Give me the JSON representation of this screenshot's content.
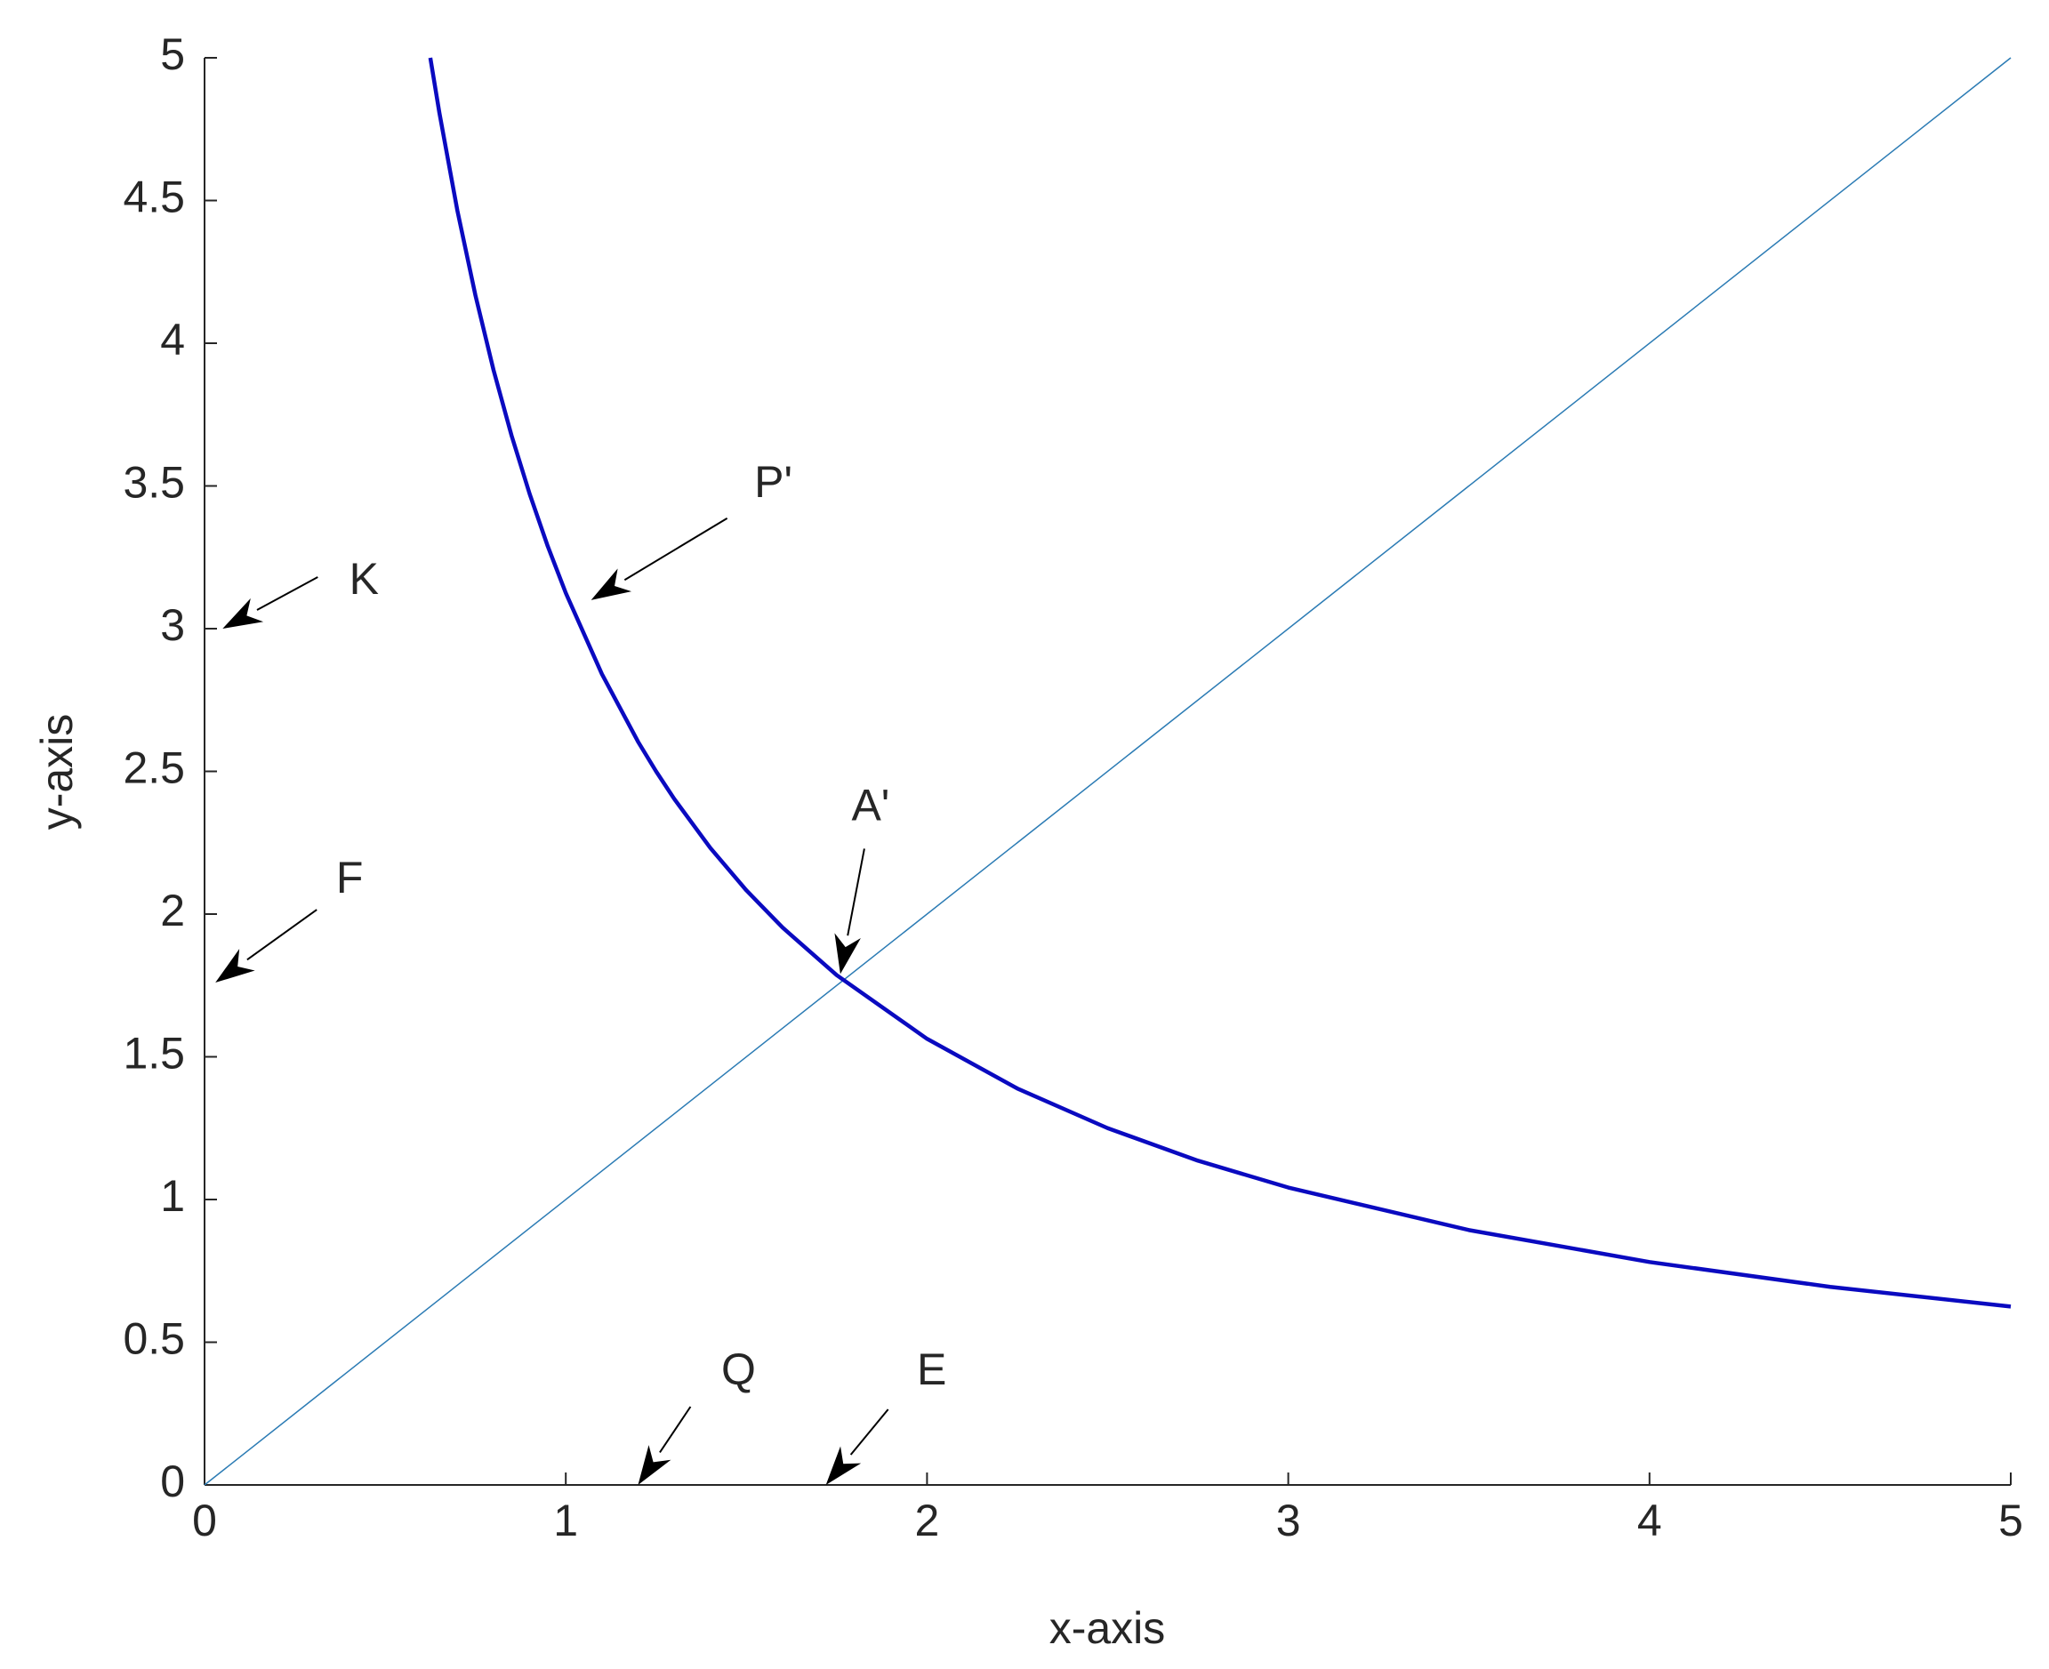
{
  "chart_data": {
    "type": "line",
    "x_label": "x-axis",
    "y_label": "y-axis",
    "xlim": [
      0,
      5
    ],
    "ylim": [
      0,
      5
    ],
    "xticks": [
      0,
      1,
      2,
      3,
      4,
      5
    ],
    "yticks": [
      0,
      0.5,
      1,
      1.5,
      2,
      2.5,
      3,
      3.5,
      4,
      4.5,
      5
    ],
    "grid": false,
    "series": [
      {
        "color": "#2b7bb4",
        "width": 1.5,
        "x": [
          0,
          5
        ],
        "values": [
          0,
          5
        ]
      },
      {
        "color": "#0a0ac0",
        "width": 4.5,
        "x": [
          0.625,
          0.65,
          0.7,
          0.75,
          0.8,
          0.85,
          0.9,
          0.95,
          1,
          1.1,
          1.2,
          1.25,
          1.3,
          1.4,
          1.5,
          1.6,
          1.75,
          2,
          2.25,
          2.5,
          2.75,
          3,
          3.5,
          4,
          4.5,
          5
        ],
        "values": [
          5,
          4.808,
          4.464,
          4.167,
          3.906,
          3.676,
          3.472,
          3.289,
          3.125,
          2.841,
          2.604,
          2.5,
          2.404,
          2.232,
          2.083,
          1.953,
          1.786,
          1.563,
          1.389,
          1.25,
          1.136,
          1.042,
          0.893,
          0.781,
          0.694,
          0.625
        ]
      }
    ],
    "annotations": [
      {
        "text": "P'",
        "x": 1.07,
        "y": 3.1
      },
      {
        "text": "K",
        "x": 0.05,
        "y": 3.0
      },
      {
        "text": "F",
        "x": 0.03,
        "y": 1.76
      },
      {
        "text": "A'",
        "x": 1.76,
        "y": 1.79
      },
      {
        "text": "Q",
        "x": 1.2,
        "y": 0
      },
      {
        "text": "E",
        "x": 1.72,
        "y": 0
      }
    ]
  }
}
